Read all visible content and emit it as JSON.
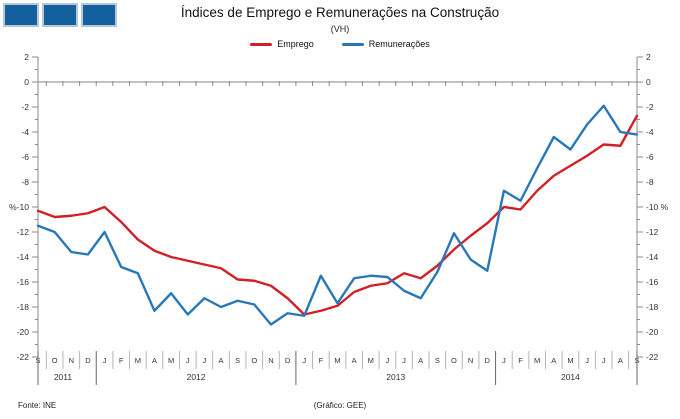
{
  "header": {
    "logo_color": "#14609f",
    "title": "Índices de Emprego e Remunerações na Construção",
    "subtitle": "(VH)"
  },
  "legend": [
    {
      "label": "Emprego",
      "color": "#d12026"
    },
    {
      "label": "Remunerações",
      "color": "#2878b8"
    }
  ],
  "footer": {
    "source": "Fonte: INE",
    "credit": "(Gráfico: GEE)"
  },
  "chart_data": {
    "type": "line",
    "title": "Índices de Emprego e Remunerações na Construção",
    "subtitle": "(VH)",
    "y_unit": "%",
    "ylim": [
      -22,
      2
    ],
    "y_tick_step": 2,
    "grid": false,
    "legend_position": "top",
    "x_labels": [
      "S",
      "O",
      "N",
      "D",
      "J",
      "F",
      "M",
      "A",
      "M",
      "J",
      "J",
      "A",
      "S",
      "O",
      "N",
      "D",
      "J",
      "F",
      "M",
      "A",
      "M",
      "J",
      "J",
      "A",
      "S",
      "O",
      "N",
      "D",
      "J",
      "F",
      "M",
      "A",
      "M",
      "J",
      "J",
      "A",
      "S"
    ],
    "year_groups": [
      {
        "label": "2011",
        "count": 4
      },
      {
        "label": "2012",
        "count": 12
      },
      {
        "label": "2013",
        "count": 12
      },
      {
        "label": "2014",
        "count": 9
      }
    ],
    "series": [
      {
        "name": "Emprego",
        "color": "#d12026",
        "values": [
          -10.3,
          -10.8,
          -10.7,
          -10.5,
          -10.0,
          -11.2,
          -12.6,
          -13.5,
          -14.0,
          -14.3,
          -14.6,
          -14.9,
          -15.8,
          -15.9,
          -16.3,
          -17.3,
          -18.6,
          -18.3,
          -17.9,
          -16.8,
          -16.3,
          -16.1,
          -15.3,
          -15.7,
          -14.7,
          -13.4,
          -12.3,
          -11.3,
          -10.0,
          -10.2,
          -8.7,
          -7.5,
          -6.7,
          -5.9,
          -5.0,
          -5.1,
          -2.7
        ]
      },
      {
        "name": "Remunerações",
        "color": "#2878b8",
        "values": [
          -11.5,
          -12.0,
          -13.6,
          -13.8,
          -12.0,
          -14.8,
          -15.3,
          -18.3,
          -16.9,
          -18.6,
          -17.3,
          -18.0,
          -17.5,
          -17.8,
          -19.4,
          -18.5,
          -18.7,
          -15.5,
          -17.7,
          -15.7,
          -15.5,
          -15.6,
          -16.7,
          -17.3,
          -15.2,
          -12.1,
          -14.2,
          -15.1,
          -8.7,
          -9.5,
          -6.9,
          -4.4,
          -5.4,
          -3.4,
          -1.9,
          -4.0,
          -4.2
        ]
      }
    ]
  }
}
